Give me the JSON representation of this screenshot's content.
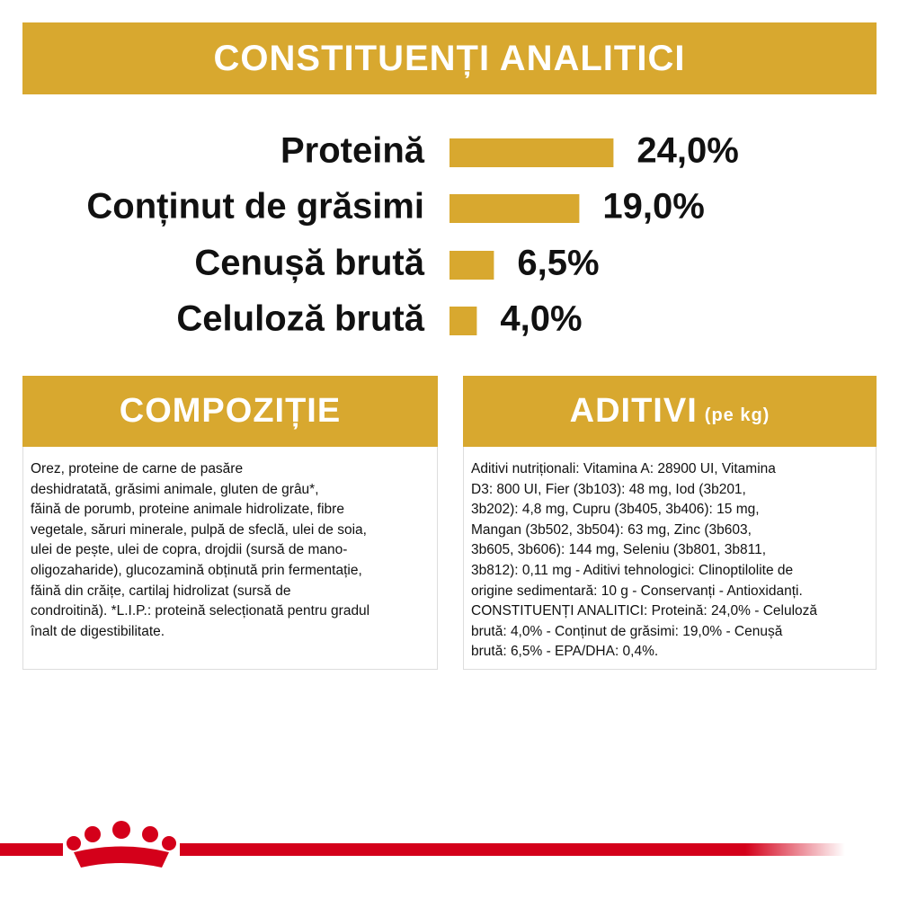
{
  "chart_data": {
    "type": "bar",
    "title": "CONSTITUENȚI ANALITICI",
    "categories": [
      "Proteină",
      "Conținut de grăsimi",
      "Cenușă brută",
      "Celuloză brută"
    ],
    "values": [
      24.0,
      19.0,
      6.5,
      4.0
    ],
    "value_labels": [
      "24,0%",
      "19,0%",
      "6,5%",
      "4,0%"
    ],
    "color": "#d8a82f"
  },
  "composition": {
    "title": "COMPOZIȚIE",
    "lines": [
      "Orez, proteine de carne de pasăre",
      "deshidratată, grăsimi animale, gluten de grâu*,",
      "făină de porumb, proteine animale hidrolizate, fibre",
      "vegetale, săruri minerale, pulpă de sfeclă, ulei de soia,",
      "ulei de pește, ulei de copra, drojdii (sursă de mano-",
      "oligozaharide), glucozamină obținută prin fermentație,",
      "făină din crăițe, cartilaj hidrolizat (sursă de",
      "condroitină). *L.I.P.: proteină selecționată pentru gradul",
      "înalt de digestibilitate."
    ]
  },
  "additives": {
    "title": "ADITIVI",
    "subtitle": "(pe kg)",
    "lines": [
      "Aditivi nutriționali: Vitamina A: 28900 UI, Vitamina",
      "D3: 800 UI, Fier (3b103): 48 mg, Iod (3b201,",
      "3b202): 4,8 mg, Cupru (3b405, 3b406): 15 mg,",
      "Mangan (3b502, 3b504): 63 mg, Zinc (3b603,",
      "3b605, 3b606): 144 mg, Seleniu (3b801, 3b811,",
      "3b812): 0,11 mg - Aditivi tehnologici: Clinoptilolite de",
      "origine sedimentară: 10 g - Conservanți - Antioxidanți.",
      "CONSTITUENȚI ANALITICI: Proteină: 24,0% - Celuloză",
      "brută: 4,0% - Conținut de grăsimi: 19,0% - Cenușă",
      "brută: 6,5% - EPA/DHA: 0,4%."
    ]
  }
}
